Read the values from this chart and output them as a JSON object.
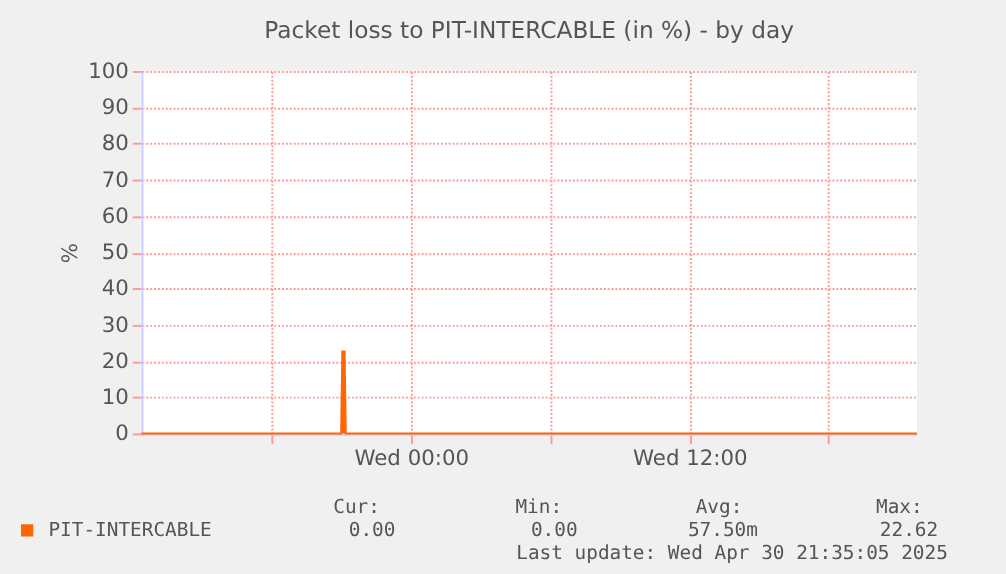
{
  "chart_data": {
    "type": "area",
    "title": "Packet loss to PIT-INTERCABLE (in %) - by day",
    "ylabel": "%",
    "x": [
      "2025-04-29T12:24",
      "2025-04-29T21:00",
      "2025-04-29T21:03",
      "2025-04-29T21:09",
      "2025-04-29T21:12",
      "2025-04-30T21:48"
    ],
    "series": [
      {
        "name": "PIT-INTERCABLE",
        "color": "#ff6600",
        "values": [
          0,
          0,
          22.62,
          22.62,
          0,
          0
        ]
      }
    ],
    "xlim": [
      "2025-04-29T12:24",
      "2025-04-30T21:48"
    ],
    "xticks": [
      {
        "value": "2025-04-29T18:00",
        "label": null
      },
      {
        "value": "2025-04-30T00:00",
        "label": "Wed 00:00"
      },
      {
        "value": "2025-04-30T06:00",
        "label": null
      },
      {
        "value": "2025-04-30T12:00",
        "label": "Wed 12:00"
      },
      {
        "value": "2025-04-30T18:00",
        "label": null
      }
    ],
    "ylim": [
      0,
      100
    ],
    "yticks": [
      0,
      10,
      20,
      30,
      40,
      50,
      60,
      70,
      80,
      90,
      100
    ],
    "grid": true,
    "legend": "bottom left",
    "annotations": [
      "Cur:",
      "Min:",
      "Avg:",
      "Max:",
      "0.00",
      "0.00",
      "57.50m",
      "22.62",
      "Last update: Wed Apr 30 21:35:05 2025"
    ]
  }
}
